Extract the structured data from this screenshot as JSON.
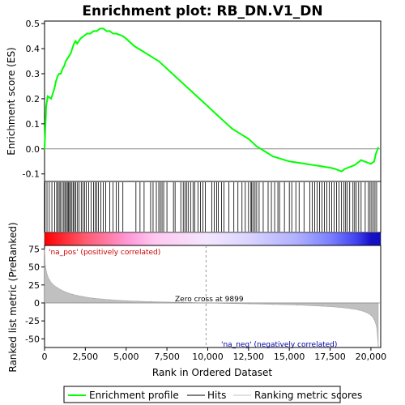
{
  "title": "Enrichment plot: RB_DN.V1_DN",
  "colors": {
    "profile": "#00ff00",
    "hits": "#000000",
    "metric_fill": "#c0c0c0",
    "pos_label": "#cc0000",
    "neg_label": "#0000aa"
  },
  "chart_data": [
    {
      "type": "line",
      "name": "enrichment-profile",
      "ylabel": "Enrichment score (ES)",
      "yticks": [
        "0.5",
        "0.4",
        "0.3",
        "0.2",
        "0.1",
        "0.0",
        "-0.1"
      ],
      "ylim": [
        -0.13,
        0.51
      ],
      "xlim": [
        0,
        20600
      ],
      "grid": false,
      "x": [
        0,
        100,
        200,
        400,
        500,
        600,
        700,
        800,
        900,
        1000,
        1100,
        1200,
        1300,
        1400,
        1500,
        1600,
        1700,
        1800,
        1900,
        2000,
        2200,
        2400,
        2600,
        2800,
        3000,
        3200,
        3400,
        3600,
        3800,
        4000,
        4200,
        4400,
        4600,
        4800,
        5000,
        5500,
        6000,
        6500,
        7000,
        7500,
        8000,
        8500,
        9000,
        9500,
        10000,
        10500,
        11000,
        11500,
        12000,
        12500,
        13000,
        13500,
        14000,
        14500,
        15000,
        15500,
        16000,
        16500,
        17000,
        17200,
        17500,
        17800,
        18000,
        18200,
        18400,
        18600,
        18800,
        19000,
        19200,
        19400,
        19600,
        19800,
        20000,
        20200,
        20300,
        20450
      ],
      "y": [
        0.0,
        0.17,
        0.21,
        0.2,
        0.22,
        0.24,
        0.27,
        0.29,
        0.3,
        0.3,
        0.32,
        0.33,
        0.35,
        0.36,
        0.37,
        0.38,
        0.4,
        0.42,
        0.43,
        0.42,
        0.44,
        0.45,
        0.46,
        0.46,
        0.47,
        0.47,
        0.48,
        0.48,
        0.47,
        0.47,
        0.46,
        0.46,
        0.455,
        0.45,
        0.44,
        0.41,
        0.39,
        0.37,
        0.35,
        0.32,
        0.29,
        0.26,
        0.23,
        0.2,
        0.17,
        0.14,
        0.11,
        0.08,
        0.06,
        0.04,
        0.01,
        -0.01,
        -0.03,
        -0.04,
        -0.05,
        -0.055,
        -0.06,
        -0.065,
        -0.07,
        -0.072,
        -0.075,
        -0.08,
        -0.085,
        -0.09,
        -0.08,
        -0.075,
        -0.07,
        -0.065,
        -0.055,
        -0.045,
        -0.05,
        -0.055,
        -0.06,
        -0.05,
        -0.02,
        0.005
      ]
    },
    {
      "type": "area",
      "name": "ranked-metric",
      "ylabel": "Ranked list metric (PreRanked)",
      "yticks": [
        "75",
        "50",
        "25",
        "0",
        "-25",
        "-50"
      ],
      "ylim": [
        -62,
        80
      ],
      "xlabel": "Rank in Ordered Dataset",
      "xticks": [
        "0",
        "2,500",
        "5,000",
        "7,500",
        "10,000",
        "12,500",
        "15,000",
        "17,500",
        "20,000"
      ],
      "xtick_values": [
        0,
        2500,
        5000,
        7500,
        10000,
        12500,
        15000,
        17500,
        20000
      ],
      "xlim": [
        0,
        20600
      ],
      "x": [
        0,
        50,
        150,
        300,
        500,
        800,
        1200,
        1700,
        2300,
        3000,
        4000,
        5000,
        6500,
        8000,
        9000,
        9899,
        11000,
        12500,
        14000,
        15500,
        17000,
        18000,
        18800,
        19300,
        19700,
        20000,
        20200,
        20350,
        20450
      ],
      "y": [
        75,
        52,
        40,
        32,
        26,
        21,
        16,
        12,
        9,
        6.5,
        4.5,
        3,
        1.8,
        1,
        0.5,
        0,
        -0.6,
        -1.2,
        -2,
        -3,
        -4.5,
        -6,
        -8,
        -10,
        -13,
        -17,
        -23,
        -33,
        -60
      ],
      "zero_cross_label": "Zero cross at 9899",
      "zero_cross": 9899,
      "pos_label": "'na_pos' (positively correlated)",
      "neg_label": "'na_neg' (negatively correlated)"
    }
  ],
  "hits": [
    30,
    150,
    290,
    450,
    620,
    740,
    820,
    900,
    980,
    1080,
    1180,
    1250,
    1330,
    1400,
    1470,
    1530,
    1600,
    1680,
    1760,
    1840,
    1920,
    2020,
    2120,
    2250,
    2350,
    2450,
    2560,
    2700,
    2850,
    3000,
    3100,
    3200,
    3300,
    3450,
    3600,
    3750,
    4000,
    4200,
    4400,
    4550,
    4800,
    5600,
    5850,
    6100,
    6500,
    6650,
    6850,
    7000,
    7100,
    7200,
    7300,
    7500,
    7900,
    8000,
    8350,
    8500,
    8600,
    8700,
    8800,
    8950,
    9100,
    9200,
    9400,
    9550,
    9700,
    9850,
    10250,
    10400,
    10550,
    10650,
    10850,
    11000,
    11300,
    11600,
    11850,
    12100,
    12300,
    12500,
    12650,
    12700,
    12800,
    12900,
    13000,
    13150,
    13400,
    13700,
    13900,
    14100,
    14300,
    14400,
    14700,
    15000,
    15150,
    15400,
    15600,
    15900,
    16250,
    16400,
    16550,
    16700,
    16850,
    17000,
    17150,
    17300,
    17450,
    17600,
    17750,
    17900,
    18050,
    18200,
    18350,
    18450,
    18550,
    18700,
    18900,
    19000,
    19100,
    19250,
    19400,
    19650,
    19850,
    19950,
    20050,
    20150,
    20250,
    20350
  ],
  "legend": {
    "items": [
      {
        "label": "Enrichment profile",
        "color": "#00ff00",
        "style": "line"
      },
      {
        "label": "Hits",
        "color": "#000000",
        "style": "line"
      },
      {
        "label": "Ranking metric scores",
        "color": "#c0c0c0",
        "style": "line"
      }
    ]
  }
}
